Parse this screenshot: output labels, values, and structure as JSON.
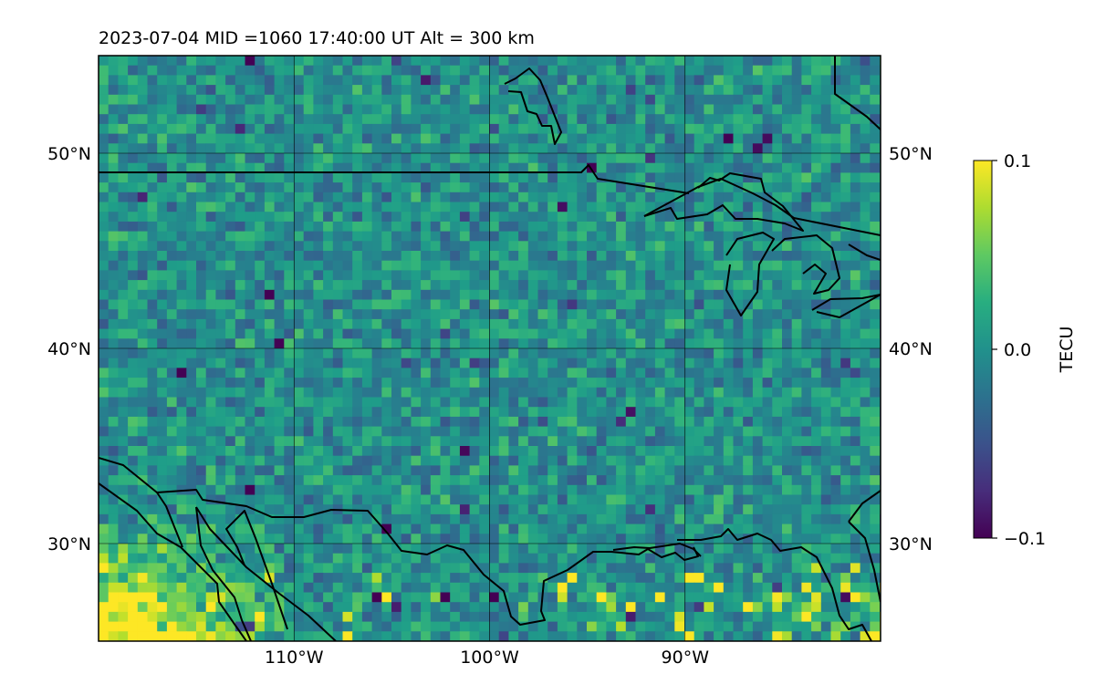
{
  "title": "2023-07-04  MID =1060    17:40:00  UT  Alt = 300 km",
  "map": {
    "lon_range": [
      -120,
      -80
    ],
    "lat_range": [
      25,
      55
    ],
    "lat_ticks": [
      {
        "value": 50,
        "label": "50°N"
      },
      {
        "value": 40,
        "label": "40°N"
      },
      {
        "value": 30,
        "label": "30°N"
      }
    ],
    "lon_ticks": [
      {
        "value": -110,
        "label": "110°W"
      },
      {
        "value": -100,
        "label": "100°W"
      },
      {
        "value": -90,
        "label": "90°W"
      }
    ],
    "grid": true,
    "field": "TEC perturbation (noisy, mostly near 0, enhanced positive over southwest)"
  },
  "colorbar": {
    "label": "TECU",
    "colormap": "viridis",
    "vmin": -0.1,
    "vmax": 0.1,
    "ticks": [
      {
        "value": 0.1,
        "label": "0.1"
      },
      {
        "value": 0.0,
        "label": "0.0"
      },
      {
        "value": -0.1,
        "label": "−0.1"
      }
    ]
  }
}
